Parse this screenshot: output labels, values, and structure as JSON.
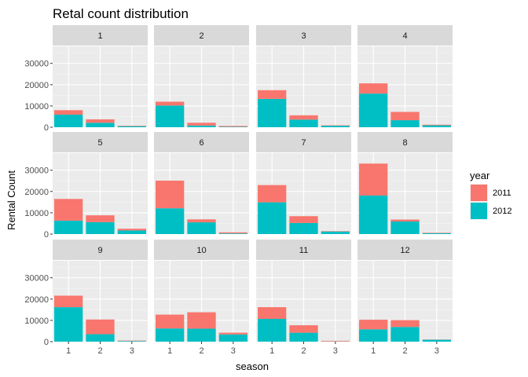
{
  "chart_data": {
    "type": "bar",
    "stacked": true,
    "faceted_by": "month",
    "title": "Retal count distribution",
    "xlabel": "season",
    "ylabel": "Rental Count",
    "ylim": [
      0,
      38000
    ],
    "y_ticks": [
      0,
      10000,
      20000,
      30000
    ],
    "categories": [
      "1",
      "2",
      "3"
    ],
    "legend": {
      "title": "year",
      "placement": "right",
      "entries": [
        {
          "name": "2011",
          "color": "#F8766D"
        },
        {
          "name": "2012",
          "color": "#00BFC4"
        }
      ]
    },
    "facets": [
      {
        "label": "1",
        "series": [
          {
            "name": "2012",
            "values": [
              5900,
              2100,
              500
            ]
          },
          {
            "name": "2011",
            "values": [
              2100,
              1600,
              200
            ]
          }
        ]
      },
      {
        "label": "2",
        "series": [
          {
            "name": "2012",
            "values": [
              10200,
              800,
              200
            ]
          },
          {
            "name": "2011",
            "values": [
              1800,
              1300,
              400
            ]
          }
        ]
      },
      {
        "label": "3",
        "series": [
          {
            "name": "2012",
            "values": [
              13300,
              3600,
              700
            ]
          },
          {
            "name": "2011",
            "values": [
              4100,
              2000,
              200
            ]
          }
        ]
      },
      {
        "label": "4",
        "series": [
          {
            "name": "2012",
            "values": [
              15800,
              3300,
              900
            ]
          },
          {
            "name": "2011",
            "values": [
              4800,
              3900,
              300
            ]
          }
        ]
      },
      {
        "label": "5",
        "series": [
          {
            "name": "2012",
            "values": [
              6300,
              5600,
              1700
            ]
          },
          {
            "name": "2011",
            "values": [
              10200,
              3200,
              800
            ]
          }
        ]
      },
      {
        "label": "6",
        "series": [
          {
            "name": "2012",
            "values": [
              12100,
              5500,
              300
            ]
          },
          {
            "name": "2011",
            "values": [
              13000,
              1400,
              500
            ]
          }
        ]
      },
      {
        "label": "7",
        "series": [
          {
            "name": "2012",
            "values": [
              14900,
              5200,
              1200
            ]
          },
          {
            "name": "2011",
            "values": [
              8100,
              3200,
              200
            ]
          }
        ]
      },
      {
        "label": "8",
        "series": [
          {
            "name": "2012",
            "values": [
              18100,
              5900,
              400
            ]
          },
          {
            "name": "2011",
            "values": [
              15000,
              900,
              200
            ]
          }
        ]
      },
      {
        "label": "9",
        "series": [
          {
            "name": "2012",
            "values": [
              16200,
              3500,
              300
            ]
          },
          {
            "name": "2011",
            "values": [
              5400,
              6900,
              200
            ]
          }
        ]
      },
      {
        "label": "10",
        "series": [
          {
            "name": "2012",
            "values": [
              6200,
              6100,
              3400
            ]
          },
          {
            "name": "2011",
            "values": [
              6500,
              7700,
              800
            ]
          }
        ]
      },
      {
        "label": "11",
        "series": [
          {
            "name": "2012",
            "values": [
              10700,
              4200,
              100
            ]
          },
          {
            "name": "2011",
            "values": [
              5500,
              3500,
              300
            ]
          }
        ]
      },
      {
        "label": "12",
        "series": [
          {
            "name": "2012",
            "values": [
              5800,
              6900,
              900
            ]
          },
          {
            "name": "2011",
            "values": [
              4500,
              3200,
              100
            ]
          }
        ]
      }
    ]
  }
}
